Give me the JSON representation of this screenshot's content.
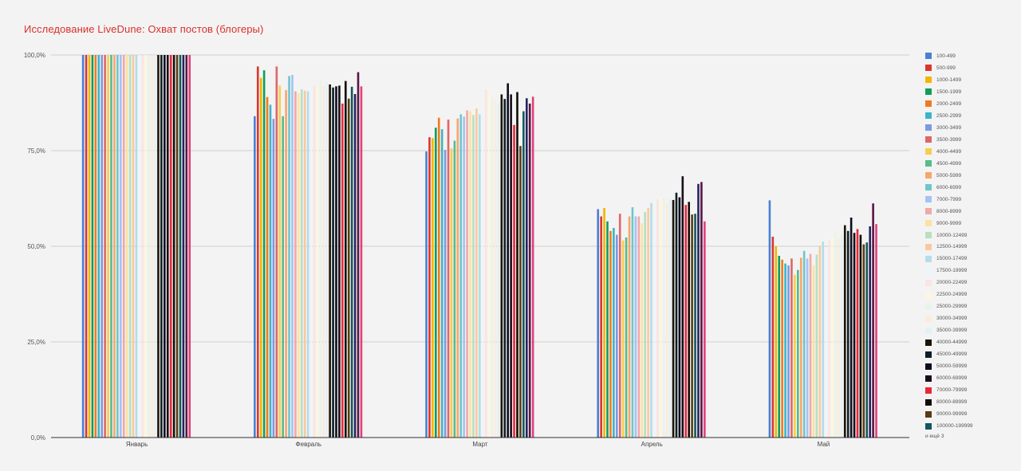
{
  "chart_data": {
    "type": "bar",
    "title": "Исследование LiveDune: Охват постов (блогеры)",
    "xlabel": "",
    "ylabel": "",
    "ylim": [
      0,
      100
    ],
    "yticks": [
      0,
      25,
      50,
      75,
      100
    ],
    "ytick_labels": [
      "0,0%",
      "25,0%",
      "50,0%",
      "75,0%",
      "100,0%"
    ],
    "grid": true,
    "legend_position": "right",
    "legend_more": "и ещё 3",
    "categories": [
      "Январь",
      "Февраль",
      "Март",
      "Апрель",
      "Май"
    ],
    "series": [
      {
        "name": "100-499",
        "color": "#4a7fd4",
        "values": [
          100,
          84,
          74.8,
          59.7,
          62
        ]
      },
      {
        "name": "500-999",
        "color": "#d9362f",
        "values": [
          100,
          97,
          78.5,
          57.8,
          52.5
        ]
      },
      {
        "name": "1000-1499",
        "color": "#f4b400",
        "values": [
          100,
          94,
          78.3,
          60,
          50
        ]
      },
      {
        "name": "1500-1999",
        "color": "#0f9d58",
        "values": [
          100,
          96,
          81,
          56.5,
          47.5
        ]
      },
      {
        "name": "2000-2499",
        "color": "#f07a1f",
        "values": [
          100,
          89,
          83.6,
          54,
          46.5
        ]
      },
      {
        "name": "2500-2999",
        "color": "#3cb4c8",
        "values": [
          100,
          87,
          80.6,
          54.8,
          45.5
        ]
      },
      {
        "name": "3000-3499",
        "color": "#7a9be0",
        "values": [
          100,
          83.3,
          75.2,
          53,
          45
        ]
      },
      {
        "name": "3500-3999",
        "color": "#e06666",
        "values": [
          100,
          97,
          83.1,
          58.5,
          46.8
        ]
      },
      {
        "name": "4000-4499",
        "color": "#f6cd4e",
        "values": [
          100,
          92,
          75.6,
          51.5,
          42.5
        ]
      },
      {
        "name": "4500-4999",
        "color": "#57bb8a",
        "values": [
          100,
          84,
          77.6,
          52.3,
          43.8
        ]
      },
      {
        "name": "5000-5999",
        "color": "#f6a66b",
        "values": [
          100,
          90.8,
          83.4,
          57.8,
          47
        ]
      },
      {
        "name": "6000-6999",
        "color": "#6dc6cc",
        "values": [
          100,
          94.5,
          84.5,
          60.2,
          48.8
        ]
      },
      {
        "name": "7000-7999",
        "color": "#a4c2f4",
        "values": [
          100,
          94.8,
          83.9,
          57.8,
          46.8
        ]
      },
      {
        "name": "8000-8999",
        "color": "#f0a8a8",
        "values": [
          100,
          90.5,
          85.5,
          57.8,
          48
        ]
      },
      {
        "name": "9000-9999",
        "color": "#fbe29f",
        "values": [
          100,
          90,
          85.3,
          56,
          45
        ]
      },
      {
        "name": "10000-12499",
        "color": "#b7dfc1",
        "values": [
          100,
          91,
          84.3,
          59,
          47.8
        ]
      },
      {
        "name": "12500-14999",
        "color": "#f9c9a0",
        "values": [
          100,
          90.7,
          86,
          60,
          50
        ]
      },
      {
        "name": "15000-17499",
        "color": "#b4dde6",
        "values": [
          100,
          90.5,
          84.5,
          61.3,
          51.2
        ]
      },
      {
        "name": "17500-19999",
        "color": "#eef4fc",
        "values": [
          100,
          90.3,
          84.9,
          58.2,
          48.6
        ]
      },
      {
        "name": "20000-22499",
        "color": "#fbe4e2",
        "values": [
          100,
          92,
          91,
          62.3,
          51.5
        ]
      },
      {
        "name": "22500-24999",
        "color": "#fdf6dc",
        "values": [
          100,
          91.7,
          90,
          62.8,
          52.3
        ]
      },
      {
        "name": "25000-29999",
        "color": "#e9f3ea",
        "values": [
          100,
          93.4,
          88.5,
          62.5,
          54
        ]
      },
      {
        "name": "30000-34999",
        "color": "#fcebdc",
        "values": [
          100,
          91.8,
          88.2,
          61.3,
          52
        ]
      },
      {
        "name": "35000-39999",
        "color": "#e4f1f2",
        "values": [
          100,
          92.8,
          87.4,
          62.5,
          53
        ]
      },
      {
        "name": "40000-44999",
        "color": "#1c1408",
        "values": [
          100,
          92.3,
          89.7,
          62.1,
          55.5
        ]
      },
      {
        "name": "45000-49999",
        "color": "#0d1f24",
        "values": [
          100,
          91.5,
          88.5,
          64,
          54
        ]
      },
      {
        "name": "50000-59999",
        "color": "#0b0e20",
        "values": [
          100,
          91.8,
          92.6,
          62.8,
          57.5
        ]
      },
      {
        "name": "60000-69999",
        "color": "#1a0d19",
        "values": [
          100,
          92,
          89.7,
          68.3,
          53.5
        ]
      },
      {
        "name": "70000-79999",
        "color": "#e8283a",
        "values": [
          100,
          87.3,
          81.7,
          60.8,
          54.5
        ]
      },
      {
        "name": "80000-89999",
        "color": "#120c06",
        "values": [
          100,
          93.2,
          90.3,
          61.6,
          53
        ]
      },
      {
        "name": "90000-99999",
        "color": "#5b3b12",
        "values": [
          100,
          88.6,
          76.2,
          58.3,
          50.5
        ]
      },
      {
        "name": "100000-199999",
        "color": "#14575d",
        "values": [
          100,
          91.7,
          85.3,
          58.5,
          51
        ]
      },
      {
        "name": "",
        "color": "#24245e",
        "values": [
          100,
          89.8,
          88.7,
          66.3,
          55.2
        ]
      },
      {
        "name": "",
        "color": "#5a1545",
        "values": [
          100,
          95.5,
          87.3,
          66.8,
          61.2
        ]
      },
      {
        "name": "",
        "color": "#e0417a",
        "values": [
          100,
          91.8,
          89.1,
          56.5,
          55.8
        ]
      }
    ]
  }
}
